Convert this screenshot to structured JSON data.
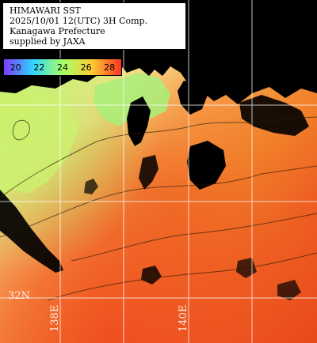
{
  "title": {
    "line1": "HIMAWARI SST",
    "line2": "2025/10/01 12(UTC) 3H Comp.",
    "line3": "Kanagawa Prefecture",
    "line4": "supplied by JAXA"
  },
  "colorbar": {
    "ticks": [
      "20",
      "22",
      "24",
      "26",
      "28"
    ],
    "colors": [
      "#7a3cff",
      "#2fd6ff",
      "#a8ff66",
      "#ffcc33",
      "#ff3322"
    ]
  },
  "grid": {
    "lat_label": "32N",
    "lon_labels": [
      "138E",
      "140E"
    ]
  },
  "palette": {
    "land": "#000000",
    "cool_green": "#c8f06a",
    "yellow": "#f3e98a",
    "orange": "#f2852c",
    "red_orange": "#ee4f1e",
    "grid": "#ffffff"
  }
}
